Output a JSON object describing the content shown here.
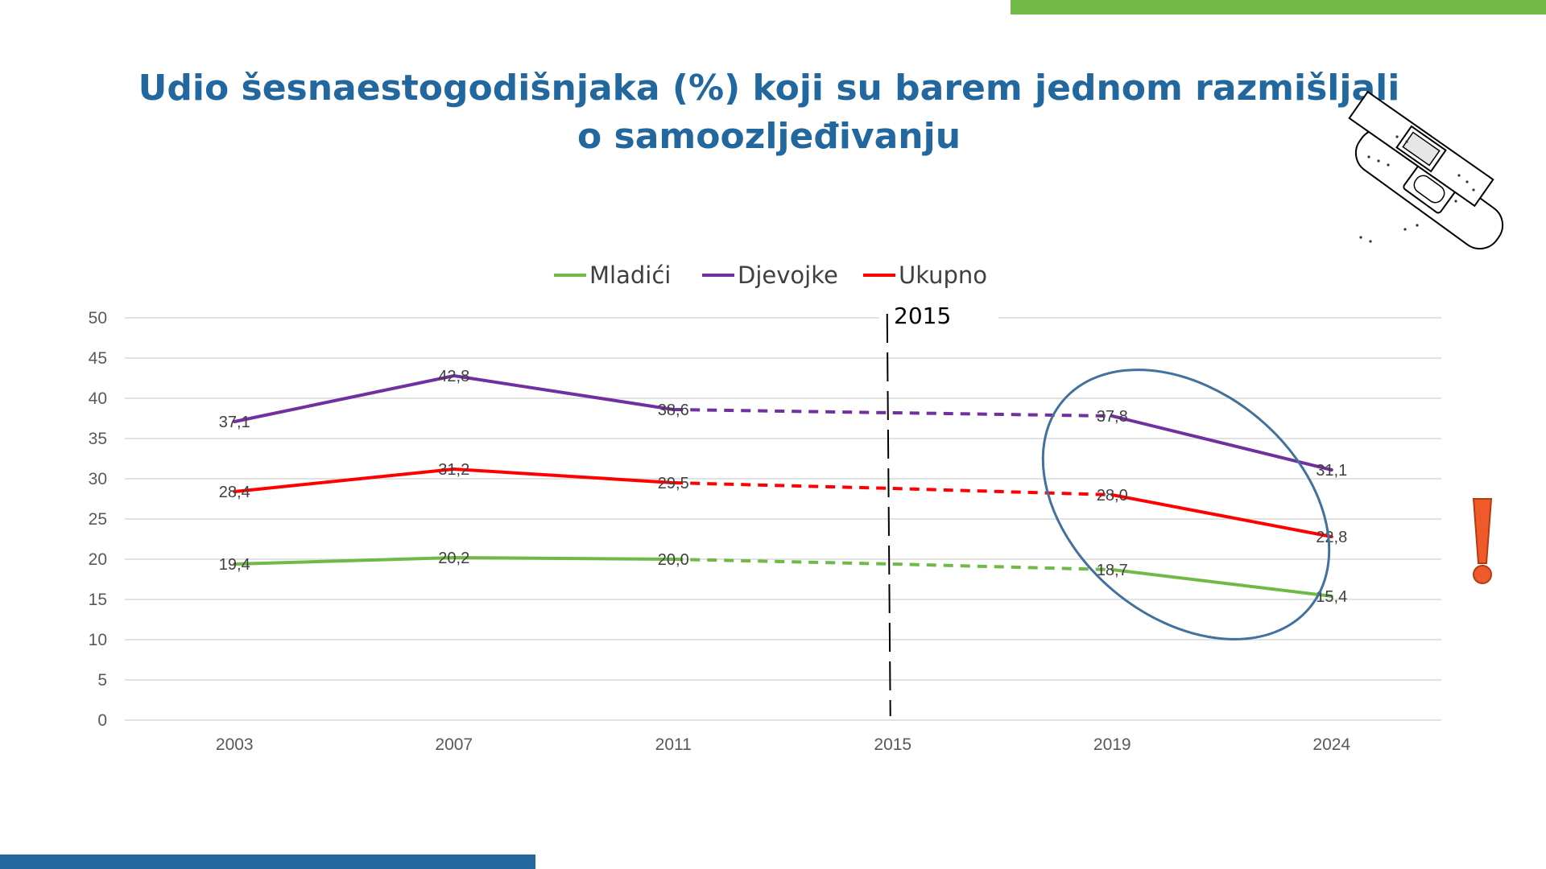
{
  "slide": {
    "title": "Udio šesnaestogodišnjaka (%) koji su barem jednom razmišljali o samoozljeđivanju",
    "accent_green": "#70b946",
    "accent_blue": "#22679e",
    "decoration_icons": [
      "bandage-icon",
      "exclamation-icon"
    ],
    "exclamation_color": "#f05a2b"
  },
  "chart_data": {
    "type": "line",
    "title": "",
    "categories": [
      "2003",
      "2007",
      "2011",
      "2015",
      "2019",
      "2024"
    ],
    "ylim": [
      0,
      50
    ],
    "yticks": [
      0,
      5,
      10,
      15,
      20,
      25,
      30,
      35,
      40,
      45,
      50
    ],
    "grid": true,
    "legend_position": "top",
    "marker_label": "2015",
    "series": [
      {
        "name": "Mladići",
        "color": "#70b946",
        "values": [
          19.4,
          20.2,
          20.0,
          19.4,
          18.7,
          15.4
        ],
        "labels": [
          "19,4",
          "20,2",
          "20,0",
          null,
          "18,7",
          "15,4"
        ]
      },
      {
        "name": "Djevojke",
        "color": "#7030a0",
        "values": [
          37.1,
          42.8,
          38.6,
          38.2,
          37.8,
          31.1
        ],
        "labels": [
          "37,1",
          "42,8",
          "38,6",
          null,
          "37,8",
          "31,1"
        ]
      },
      {
        "name": "Ukupno",
        "color": "#ff0000",
        "values": [
          28.4,
          31.2,
          29.5,
          28.8,
          28.0,
          22.8
        ],
        "labels": [
          "28,4",
          "31,2",
          "29,5",
          null,
          "28,0",
          "22,8"
        ]
      }
    ],
    "dashed_segments": [
      "2011-2015",
      "2015-2019"
    ],
    "highlight": "2019-2024"
  }
}
